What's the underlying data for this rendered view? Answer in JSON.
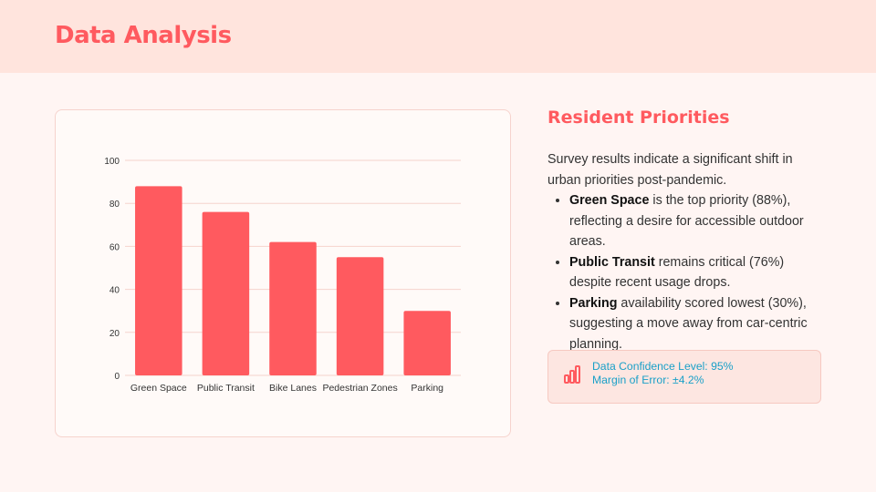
{
  "header": {
    "title": "Data Analysis"
  },
  "chart_data": {
    "type": "bar",
    "title": "",
    "xlabel": "",
    "ylabel": "",
    "categories": [
      "Green Space",
      "Public Transit",
      "Bike Lanes",
      "Pedestrian Zones",
      "Parking"
    ],
    "values": [
      88,
      76,
      62,
      55,
      30
    ],
    "ylim": [
      0,
      100
    ],
    "yticks": [
      0,
      20,
      40,
      60,
      80,
      100
    ],
    "grid": true,
    "bar_color": "#ff5a5f",
    "grid_color": "#f6d3cd"
  },
  "insights": {
    "title": "Resident Priorities",
    "intro": "Survey results indicate a significant shift in urban priorities post-pandemic.",
    "bullets": [
      {
        "strong": "Green Space",
        "text": " is the top priority (88%), reflecting a desire for accessible outdoor areas."
      },
      {
        "strong": "Public Transit",
        "text": " remains critical (76%) despite recent usage drops."
      },
      {
        "strong": "Parking",
        "text": " availability scored lowest (30%), suggesting a move away from car-centric planning."
      }
    ]
  },
  "confidence": {
    "icon": "bar-chart-icon",
    "level": "Data Confidence Level: 95%",
    "margin": "Margin of Error: ±4.2%",
    "icon_color": "#ff5a5f",
    "text_color": "#1aa0c8"
  }
}
